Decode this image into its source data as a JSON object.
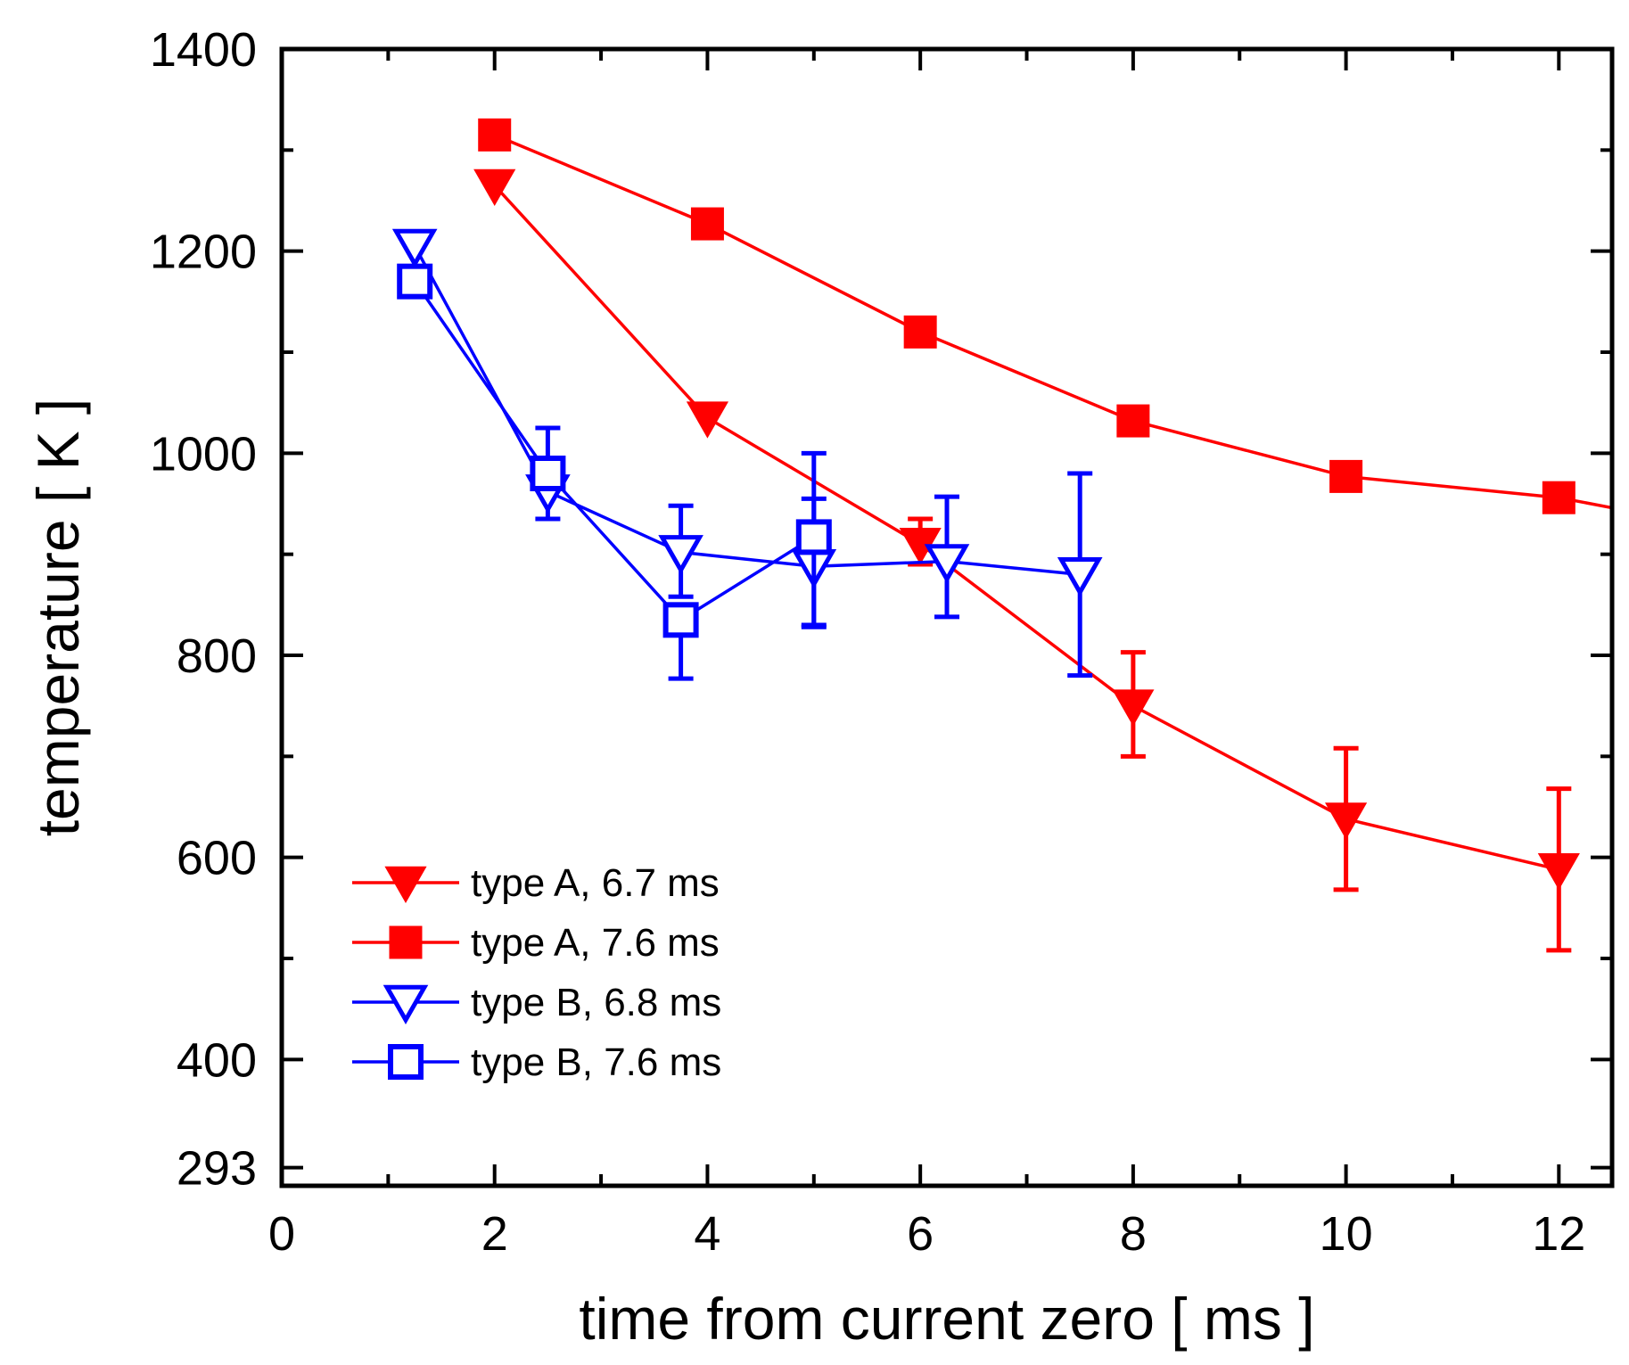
{
  "chart_data": {
    "type": "line",
    "xlabel": "time from current zero [ ms ]",
    "ylabel": "temperature [ K ]",
    "xlim": [
      0,
      12.5
    ],
    "ylim": [
      275,
      1400
    ],
    "x_ticks": [
      0,
      2,
      4,
      6,
      8,
      10,
      12
    ],
    "x_minor_ticks": [
      1,
      3,
      5,
      7,
      9,
      11
    ],
    "y_ticks": [
      293,
      400,
      600,
      800,
      1000,
      1200,
      1400
    ],
    "y_minor_ticks": [
      500,
      700,
      900,
      1100,
      1300
    ],
    "grid": false,
    "legend_position": "bottom-left",
    "series": [
      {
        "name": "type A, 6.7 ms",
        "color": "#ff0000",
        "marker": "triangle-down-filled",
        "x": [
          2,
          4,
          6,
          8,
          10,
          12
        ],
        "y": [
          1265,
          1035,
          910,
          750,
          638,
          588
        ],
        "err_low": [
          null,
          null,
          890,
          700,
          568,
          508
        ],
        "err_high": [
          null,
          null,
          935,
          803,
          708,
          668
        ],
        "extends_right": false
      },
      {
        "name": "type A, 7.6 ms",
        "color": "#ff0000",
        "marker": "square-filled",
        "x": [
          2,
          4,
          6,
          8,
          10,
          12
        ],
        "y": [
          1315,
          1227,
          1120,
          1032,
          977,
          956
        ],
        "err_low": [
          null,
          null,
          null,
          null,
          null,
          null
        ],
        "err_high": [
          null,
          null,
          null,
          null,
          null,
          null
        ],
        "extends_right": true,
        "right_end_y": 946
      },
      {
        "name": "type B, 6.8 ms",
        "color": "#0000ff",
        "marker": "triangle-down-open",
        "x": [
          1.25,
          2.5,
          3.75,
          5,
          6.25,
          7.5
        ],
        "y": [
          1205,
          962,
          902,
          888,
          893,
          880
        ],
        "err_low": [
          null,
          935,
          858,
          828,
          838,
          780
        ],
        "err_high": [
          1212,
          null,
          948,
          955,
          957,
          980
        ],
        "extends_right": false
      },
      {
        "name": "type B, 7.6 ms",
        "color": "#0000ff",
        "marker": "square-open",
        "x": [
          1.25,
          2.5,
          3.75,
          5
        ],
        "y": [
          1170,
          980,
          835,
          917
        ],
        "err_low": [
          1160,
          null,
          777,
          830
        ],
        "err_high": [
          null,
          1025,
          null,
          1000
        ],
        "extends_right": false
      }
    ]
  }
}
